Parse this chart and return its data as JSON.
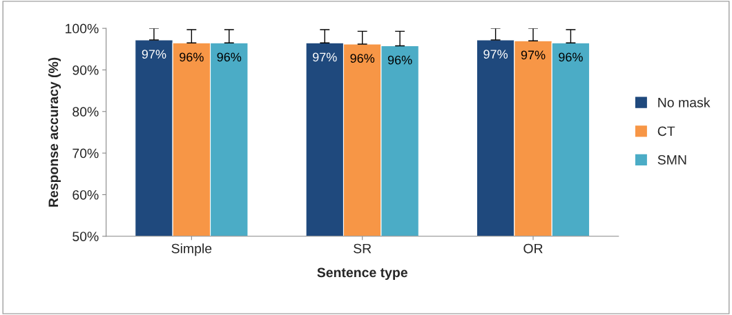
{
  "chart_data": {
    "type": "bar",
    "xlabel": "Sentence type",
    "ylabel": "Response accuracy (%)",
    "categories": [
      "Simple",
      "SR",
      "OR"
    ],
    "series": [
      {
        "name": "No mask",
        "color": "#1f497d",
        "values": [
          97.2,
          96.5,
          97.2
        ],
        "errors": [
          2.8,
          3.2,
          2.8
        ],
        "value_labels": [
          "97%",
          "97%",
          "97%"
        ]
      },
      {
        "name": "CT",
        "color": "#f79646",
        "values": [
          96.5,
          96.2,
          97.0
        ],
        "errors": [
          3.2,
          3.1,
          3.0
        ],
        "value_labels": [
          "96%",
          "96%",
          "97%"
        ]
      },
      {
        "name": "SMN",
        "color": "#4bacc6",
        "values": [
          96.5,
          95.8,
          96.5
        ],
        "errors": [
          3.2,
          3.5,
          3.2
        ],
        "value_labels": [
          "96%",
          "96%",
          "96%"
        ]
      }
    ],
    "ylim": [
      50,
      100
    ],
    "yticks": [
      {
        "value": 50,
        "label": "50%"
      },
      {
        "value": 60,
        "label": "60%"
      },
      {
        "value": 70,
        "label": "70%"
      },
      {
        "value": 80,
        "label": "80%"
      },
      {
        "value": 90,
        "label": "90%"
      },
      {
        "value": 100,
        "label": "100%"
      }
    ],
    "grid": false,
    "legend": "right"
  }
}
